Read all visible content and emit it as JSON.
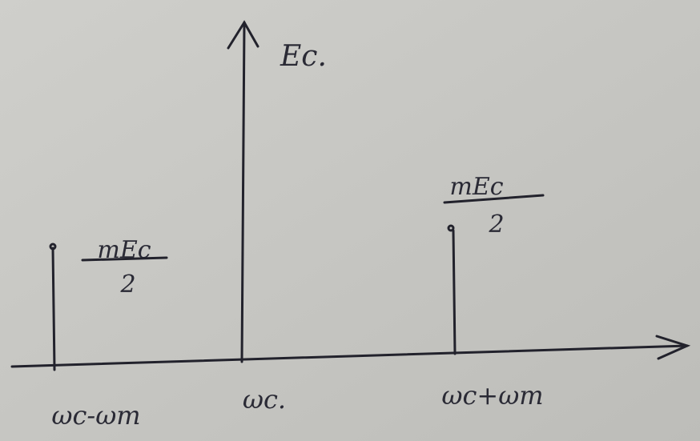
{
  "carrier": {
    "label": "Ec."
  },
  "sidebands": [
    {
      "numerator": "mEc",
      "denominator": "2"
    },
    {
      "numerator": "mEc",
      "denominator": "2"
    }
  ],
  "axis_labels": [
    "ωc-ωm",
    "ωc.",
    "ωc+ωm"
  ]
}
